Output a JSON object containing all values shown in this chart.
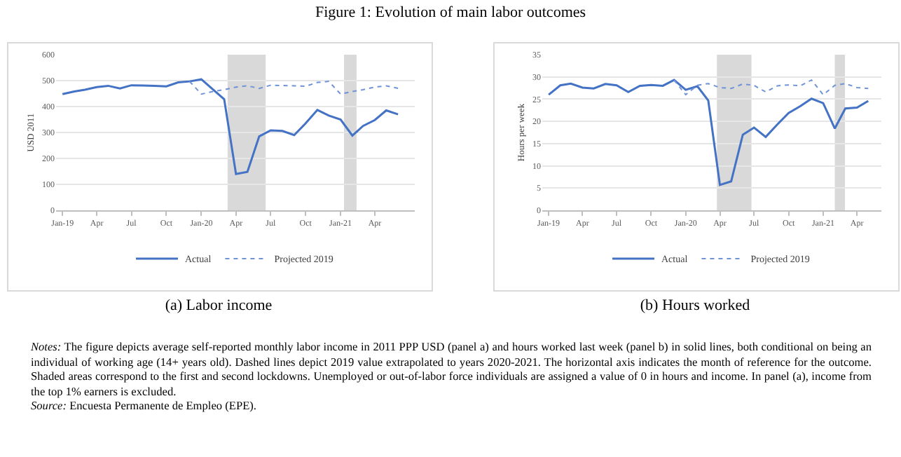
{
  "chart_data": [
    {
      "type": "line",
      "title": "Figure 1: Evolution of main labor outcomes",
      "subtitle": "(a) Labor income",
      "ylabel": "USD 2011",
      "x": [
        "2019-01",
        "2019-02",
        "2019-03",
        "2019-04",
        "2019-05",
        "2019-06",
        "2019-07",
        "2019-08",
        "2019-09",
        "2019-10",
        "2019-11",
        "2019-12",
        "2020-01",
        "2020-02",
        "2020-03",
        "2020-04",
        "2020-05",
        "2020-06",
        "2020-07",
        "2020-08",
        "2020-09",
        "2020-10",
        "2020-11",
        "2020-12",
        "2021-01",
        "2021-02",
        "2021-03",
        "2021-04",
        "2021-05",
        "2021-06"
      ],
      "series": [
        {
          "name": "Actual",
          "color": "#4472c4",
          "line_style": "solid",
          "values": [
            448,
            458,
            465,
            475,
            480,
            470,
            482,
            481,
            480,
            478,
            493,
            497,
            505,
            465,
            428,
            140,
            148,
            285,
            308,
            306,
            290,
            335,
            387,
            365,
            350,
            288,
            325,
            348,
            385,
            370
          ]
        },
        {
          "name": "Projected 2019",
          "color": "#6f93d6",
          "line_style": "dotted",
          "x": [
            "2019-12",
            "2020-01",
            "2020-02",
            "2020-03",
            "2020-04",
            "2020-05",
            "2020-06",
            "2020-07",
            "2020-08",
            "2020-09",
            "2020-10",
            "2020-11",
            "2020-12",
            "2021-01",
            "2021-02",
            "2021-03",
            "2021-04",
            "2021-05",
            "2021-06"
          ],
          "values": [
            497,
            448,
            458,
            465,
            475,
            480,
            470,
            482,
            481,
            480,
            478,
            493,
            497,
            448,
            458,
            465,
            475,
            480,
            470
          ]
        }
      ],
      "xlim": [
        "2018-12-15",
        "2021-07-15"
      ],
      "xticks": [
        {
          "value": "2019-01",
          "label": "Jan-19"
        },
        {
          "value": "2019-04",
          "label": "Apr"
        },
        {
          "value": "2019-07",
          "label": "Jul"
        },
        {
          "value": "2019-10",
          "label": "Oct"
        },
        {
          "value": "2020-01",
          "label": "Jan-20"
        },
        {
          "value": "2020-04",
          "label": "Apr"
        },
        {
          "value": "2020-07",
          "label": "Jul"
        },
        {
          "value": "2020-10",
          "label": "Oct"
        },
        {
          "value": "2021-01",
          "label": "Jan-21"
        },
        {
          "value": "2021-04",
          "label": "Apr"
        }
      ],
      "ylim": [
        0,
        600
      ],
      "yticks": [
        0,
        100,
        200,
        300,
        400,
        500,
        600
      ],
      "grid": "y",
      "legend": "bottom",
      "bands": [
        {
          "axis": "x",
          "from": "2020-03-10",
          "to": "2020-06-18",
          "color": "#d9d9d9"
        },
        {
          "axis": "x",
          "from": "2021-01-10",
          "to": "2021-02-12",
          "color": "#d9d9d9"
        }
      ]
    },
    {
      "type": "line",
      "subtitle": "(b) Hours worked",
      "ylabel": "Hours per week",
      "x": [
        "2019-01",
        "2019-02",
        "2019-03",
        "2019-04",
        "2019-05",
        "2019-06",
        "2019-07",
        "2019-08",
        "2019-09",
        "2019-10",
        "2019-11",
        "2019-12",
        "2020-01",
        "2020-02",
        "2020-03",
        "2020-04",
        "2020-05",
        "2020-06",
        "2020-07",
        "2020-08",
        "2020-09",
        "2020-10",
        "2020-11",
        "2020-12",
        "2021-01",
        "2021-02",
        "2021-03",
        "2021-04",
        "2021-05"
      ],
      "series": [
        {
          "name": "Actual",
          "color": "#4472c4",
          "line_style": "solid",
          "values": [
            26.0,
            28.1,
            28.5,
            27.6,
            27.4,
            28.4,
            28.1,
            26.6,
            28.0,
            28.2,
            28.0,
            29.3,
            27.1,
            27.9,
            24.7,
            5.7,
            6.5,
            17.0,
            18.6,
            16.5,
            19.3,
            21.9,
            23.4,
            25.1,
            24.1,
            18.4,
            22.9,
            23.1,
            24.6
          ]
        },
        {
          "name": "Projected 2019",
          "color": "#6f93d6",
          "line_style": "dotted",
          "x": [
            "2019-12",
            "2020-01",
            "2020-02",
            "2020-03",
            "2020-04",
            "2020-05",
            "2020-06",
            "2020-07",
            "2020-08",
            "2020-09",
            "2020-10",
            "2020-11",
            "2020-12",
            "2021-01",
            "2021-02",
            "2021-03",
            "2021-04",
            "2021-05"
          ],
          "values": [
            29.3,
            26.0,
            28.1,
            28.5,
            27.6,
            27.4,
            28.4,
            28.1,
            26.6,
            28.0,
            28.2,
            28.0,
            29.3,
            26.0,
            28.1,
            28.5,
            27.6,
            27.4
          ]
        }
      ],
      "xlim": [
        "2018-12-15",
        "2021-06-05"
      ],
      "xticks": [
        {
          "value": "2019-01",
          "label": "Jan-19"
        },
        {
          "value": "2019-04",
          "label": "Apr"
        },
        {
          "value": "2019-07",
          "label": "Jul"
        },
        {
          "value": "2019-10",
          "label": "Oct"
        },
        {
          "value": "2020-01",
          "label": "Jan-20"
        },
        {
          "value": "2020-04",
          "label": "Apr"
        },
        {
          "value": "2020-07",
          "label": "Jul"
        },
        {
          "value": "2020-10",
          "label": "Oct"
        },
        {
          "value": "2021-01",
          "label": "Jan-21"
        },
        {
          "value": "2021-04",
          "label": "Apr"
        }
      ],
      "ylim": [
        0,
        35
      ],
      "yticks": [
        0,
        5,
        10,
        15,
        20,
        25,
        30,
        35
      ],
      "grid": "y",
      "legend": "bottom",
      "bands": [
        {
          "axis": "x",
          "from": "2020-03-24",
          "to": "2020-06-24",
          "color": "#d9d9d9"
        },
        {
          "axis": "x",
          "from": "2021-02-01",
          "to": "2021-02-28",
          "color": "#d9d9d9"
        }
      ],
      "annotations": [
        "Notes: The figure depicts average self-reported monthly labor income in 2011 PPP USD (panel a) and hours worked last week (panel b) in solid lines, both conditional on being an individual of working age (14+ years old). Dashed lines depict 2019 value extrapolated to years 2020-2021. The horizontal axis indicates the month of reference for the outcome. Shaded areas correspond to the first and second lockdowns. Unemployed or out-of-labor force individuals are assigned a value of 0 in hours and income. In panel (a), income from the top 1% earners is excluded.",
        "Source: Encuesta Permanente de Empleo (EPE)."
      ]
    }
  ]
}
